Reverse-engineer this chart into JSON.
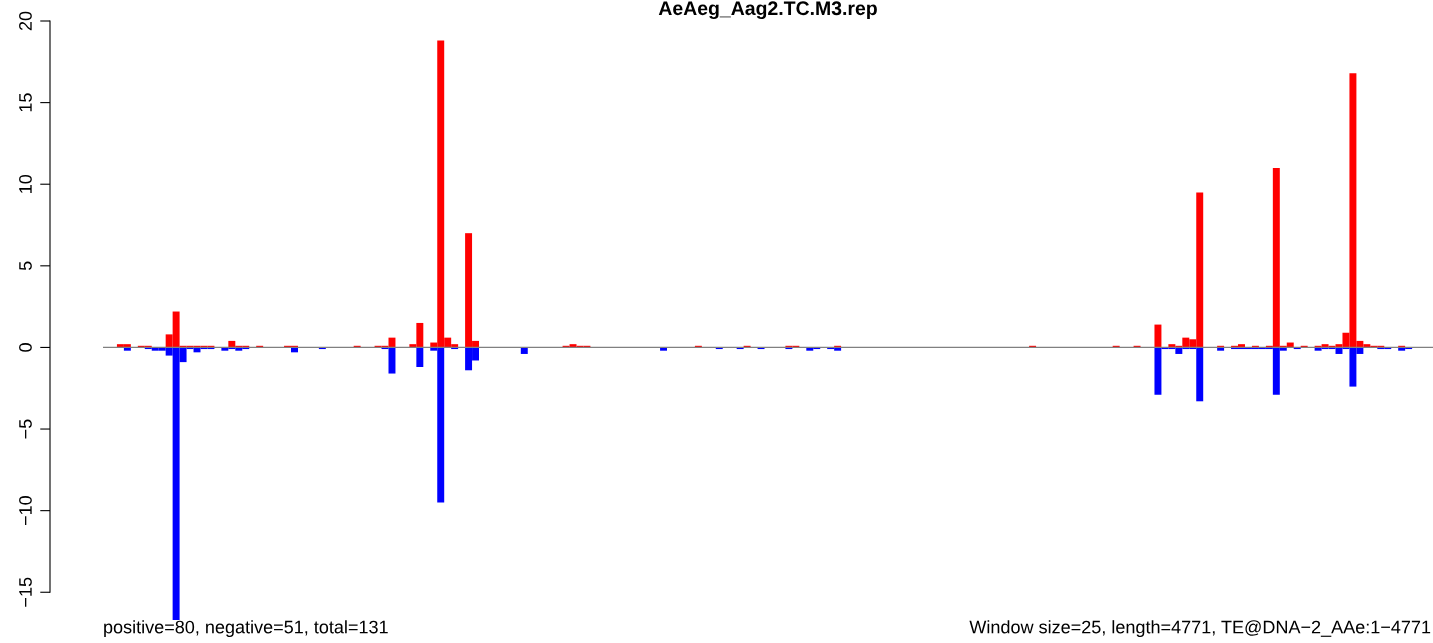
{
  "chart_data": {
    "type": "bar",
    "title": "AeAeg_Aag2.TC.M3.rep",
    "categories": [
      null,
      null,
      null,
      null,
      null,
      null,
      null,
      null,
      null,
      null,
      null,
      null,
      null,
      null,
      null,
      null,
      null,
      null,
      null,
      null,
      null,
      null,
      null,
      null,
      null,
      null,
      null,
      null,
      null,
      null,
      null,
      null,
      null,
      null,
      null,
      null,
      null,
      null,
      null,
      null,
      null,
      null,
      null,
      null,
      null,
      null,
      null,
      null,
      null,
      null,
      null,
      null,
      null,
      null,
      null,
      null,
      null,
      null,
      null,
      null,
      null,
      null,
      null,
      null,
      null,
      null,
      null,
      null,
      null,
      null,
      null,
      null,
      null,
      null,
      null,
      null,
      null,
      null,
      null,
      null,
      null,
      null,
      null,
      null,
      null,
      null,
      null,
      null,
      null,
      null,
      null,
      null,
      null,
      null,
      null,
      null,
      null,
      null,
      null,
      null,
      null,
      null,
      null,
      null,
      null,
      null,
      null,
      null,
      null,
      null,
      null,
      null,
      null,
      null,
      null,
      null,
      null,
      null,
      null,
      null,
      null,
      null,
      null,
      null,
      null,
      null,
      null,
      null,
      null,
      null,
      null,
      null,
      null,
      null,
      null,
      null,
      null,
      null,
      null,
      null,
      null,
      null,
      null,
      null,
      null,
      null,
      null,
      null,
      null,
      null,
      null,
      null,
      null,
      null,
      null,
      null,
      null,
      null,
      null,
      null,
      null,
      null,
      null,
      null,
      null,
      null,
      null,
      null,
      null,
      null,
      null,
      null,
      null,
      null,
      null,
      null,
      null,
      null,
      null,
      null,
      null,
      null,
      null,
      null,
      null,
      null,
      null,
      null,
      null,
      null,
      null
    ],
    "series": [
      {
        "color": "#ff0000",
        "values": [
          0,
          0,
          0.2,
          0.2,
          0,
          0.1,
          0.1,
          0,
          0,
          0.8,
          2.2,
          0.1,
          0.1,
          0.1,
          0.1,
          0.1,
          0,
          0,
          0.4,
          0.1,
          0.1,
          0,
          0.1,
          0,
          0,
          0,
          0.1,
          0.1,
          0,
          0,
          0,
          0,
          0,
          0,
          0,
          0,
          0.1,
          0,
          0,
          0.1,
          0.1,
          0.6,
          0,
          0,
          0.2,
          1.5,
          0,
          0.3,
          18.8,
          0.6,
          0.2,
          0,
          7.0,
          0.4,
          0,
          0,
          0,
          0,
          0,
          0,
          0,
          0,
          0,
          0,
          0,
          0,
          0.1,
          0.2,
          0.1,
          0.1,
          0,
          0,
          0,
          0,
          0,
          0,
          0,
          0,
          0,
          0,
          0,
          0,
          0,
          0,
          0,
          0.1,
          0,
          0,
          0,
          0,
          0,
          0,
          0.1,
          0,
          0,
          0,
          0,
          0,
          0.1,
          0.1,
          0,
          0,
          0,
          0,
          0,
          0.1,
          0,
          0,
          0,
          0,
          0,
          0,
          0,
          0,
          0,
          0,
          0,
          0,
          0,
          0,
          0,
          0,
          0,
          0,
          0,
          0,
          0,
          0,
          0,
          0,
          0,
          0,
          0,
          0.1,
          0,
          0,
          0,
          0,
          0,
          0,
          0,
          0,
          0,
          0,
          0,
          0.1,
          0,
          0,
          0.1,
          0,
          0,
          1.4,
          0,
          0.2,
          0.1,
          0.6,
          0.5,
          9.5,
          0,
          0,
          0.1,
          0,
          0.1,
          0.2,
          0,
          0.1,
          0,
          0.1,
          11.0,
          0.1,
          0.3,
          0,
          0.1,
          0,
          0.1,
          0.2,
          0.1,
          0.2,
          0.9,
          16.8,
          0.4,
          0.2,
          0.1,
          0.1,
          0,
          0,
          0.1,
          0,
          0,
          0,
          0
        ]
      },
      {
        "color": "#0000ff",
        "values": [
          0,
          0,
          0,
          -0.2,
          0,
          0,
          -0.1,
          -0.2,
          -0.2,
          -0.5,
          -16.7,
          -0.9,
          -0.1,
          -0.3,
          -0.1,
          -0.1,
          0,
          -0.2,
          -0.1,
          -0.2,
          -0.1,
          0,
          0,
          0,
          0,
          0,
          0,
          -0.3,
          0,
          0,
          0,
          -0.1,
          0,
          0,
          0,
          0,
          0,
          0,
          0,
          0,
          -0.1,
          -1.6,
          0,
          0,
          0,
          -1.2,
          0,
          -0.2,
          -9.5,
          0,
          -0.1,
          0,
          -1.4,
          -0.8,
          0,
          0,
          0,
          0,
          0,
          0,
          -0.4,
          0,
          0,
          0,
          0,
          0,
          0,
          0,
          0,
          0,
          0,
          0,
          0,
          0,
          0,
          0,
          0,
          0,
          0,
          0,
          -0.2,
          0,
          0,
          0,
          0,
          0,
          0,
          0,
          -0.1,
          0,
          0,
          -0.1,
          0,
          0,
          -0.1,
          0,
          0,
          0,
          -0.1,
          0,
          0,
          -0.2,
          -0.1,
          0,
          -0.1,
          -0.2,
          0,
          0,
          0,
          0,
          0,
          0,
          0,
          0,
          0,
          0,
          0,
          0,
          0,
          0,
          0,
          0,
          0,
          0,
          0,
          0,
          0,
          0,
          0,
          0,
          0,
          0,
          0,
          0,
          0,
          0,
          0,
          0,
          0,
          0,
          0,
          0,
          0,
          0,
          0,
          0,
          0,
          0,
          0,
          0,
          0,
          -2.9,
          -0.1,
          -0.1,
          -0.4,
          -0.1,
          -0.1,
          -3.3,
          0,
          0,
          -0.2,
          0,
          -0.1,
          -0.1,
          -0.1,
          -0.1,
          -0.1,
          -0.1,
          -2.9,
          -0.2,
          0,
          -0.1,
          0,
          0,
          -0.2,
          -0.1,
          -0.1,
          -0.4,
          -0.1,
          -2.4,
          -0.4,
          0,
          0,
          -0.1,
          -0.1,
          0,
          -0.2,
          -0.1,
          0,
          0,
          0
        ]
      }
    ],
    "ylim": [
      -16.7,
      20
    ],
    "yticks": [
      -15,
      -10,
      -5,
      0,
      5,
      10,
      15,
      20
    ],
    "tick_labels": "y",
    "grid": false,
    "legend": false,
    "ref_lines": [
      {
        "axis": "y",
        "value": 0,
        "color": "#808080"
      }
    ],
    "annotations": [
      "positive=80, negative=51, total=131",
      "Window size=25, length=4771, TE@DNA−2_AAe:1−4771"
    ]
  }
}
